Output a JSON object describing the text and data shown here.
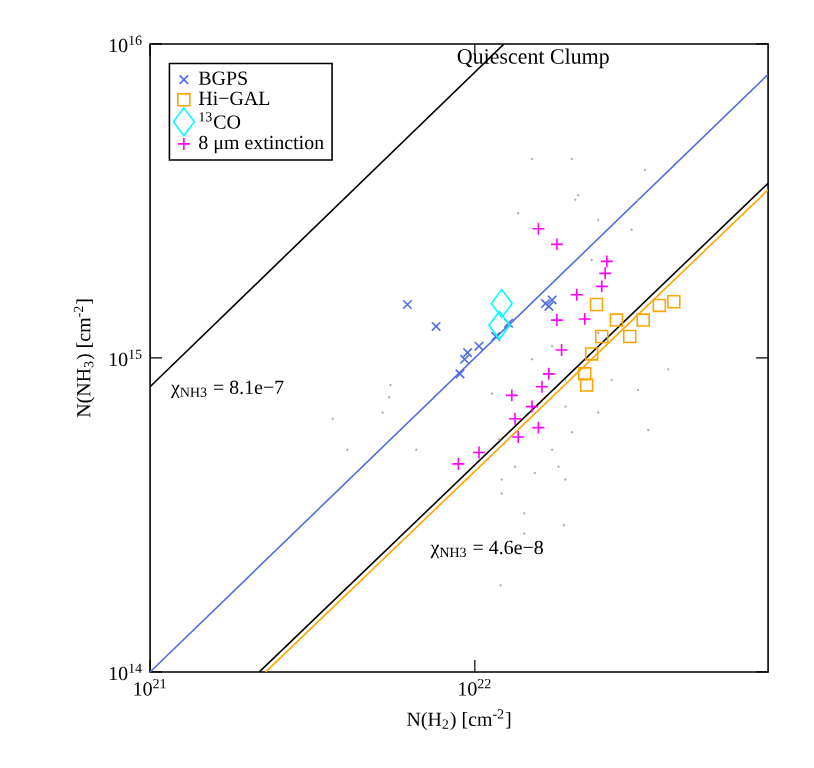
{
  "chart_data": {
    "type": "scatter",
    "title": "Quiescent Clump",
    "xlabel": "N(H$_{2}$) [cm$^{-2}$]",
    "ylabel": "N(NH$_{3}$) [cm$^{-2}$]",
    "log": "xy",
    "xlim": [
      1e+21,
      8e+22
    ],
    "ylim": [
      100000000000000.0,
      1e+16
    ],
    "xticks": [
      {
        "value": 1e+21,
        "label": "10$^{21}$"
      },
      {
        "value": 1e+22,
        "label": "10$^{22}$"
      }
    ],
    "yticks": [
      {
        "value": 100000000000000.0,
        "label": "10$^{14}$"
      },
      {
        "value": 1000000000000000.0,
        "label": "10$^{15}$"
      },
      {
        "value": 1e+16,
        "label": "10$^{16}$"
      }
    ],
    "grid": false,
    "legend": "top left",
    "annotations": [
      "χ$_{NH3}$ = 8.1e−7",
      "χ$_{NH3}$ = 4.6e−8"
    ],
    "series": [
      {
        "color": "#aaaaaa",
        "marker": "circle",
        "x": [
          1.21e+22,
          1.21e+22,
          1.42e+22,
          1.42e+22,
          1.88e+22,
          1.2e+22,
          1.73e+22,
          1.9e+22,
          1.53e+22,
          1.81e+22,
          1.33e+22,
          1.5e+22,
          1.99e+22,
          2.08e+22,
          3.34e+22,
          3.18e+22,
          1.36e+22,
          2.4e+22,
          3.04e+22,
          5.45e+21,
          5.2e+21,
          3.65e+21,
          6.6e+21,
          1.13e+22,
          1.19e+22,
          1.9e+22,
          1.99e+22,
          2.04e+22,
          2.29e+22,
          2.4e+22,
          2.64e+22,
          1.73e+22,
          1.5e+22,
          1.9e+22,
          2.4e+22,
          5.5e+21,
          4.05e+21,
          3.18e+22,
          3.94e+22,
          3.42e+22
        ],
        "values": [
          410000000000000.0,
          370000000000000.0,
          320000000000000.0,
          276000000000000.0,
          293000000000000.0,
          189000000000000.0,
          510000000000000.0,
          410000000000000.0,
          430000000000000.0,
          450000000000000.0,
          450000000000000.0,
          4300000000000000.0,
          4300000000000000.0,
          3300000000000000.0,
          3970000000000000.0,
          3190000000000000.0,
          2890000000000000.0,
          2750000000000000.0,
          2560000000000000.0,
          750000000000000.0,
          670000000000000.0,
          640000000000000.0,
          510000000000000.0,
          770000000000000.0,
          550000000000000.0,
          850000000000000.0,
          580000000000000.0,
          3190000000000000.0,
          2050000000000000.0,
          1200000000000000.0,
          850000000000000.0,
          1090000000000000.0,
          990000000000000.0,
          700000000000000.0,
          670000000000000.0,
          820000000000000.0,
          510000000000000.0,
          790000000000000.0,
          920000000000000.0,
          590000000000000.0
        ]
      },
      {
        "type": "line",
        "color": "#4f6fe0",
        "marker": "none",
        "x": [
          1e+21,
          8e+22
        ],
        "values": [
          100000000000000.0,
          8000000000000000.0
        ]
      },
      {
        "type": "line",
        "color": "#000000",
        "marker": "none",
        "x": [
          1e+21,
          1.23e+22
        ],
        "values": [
          810000000000000.0,
          1e+16
        ]
      },
      {
        "type": "line",
        "color": "#ffa500",
        "marker": "none",
        "x": [
          2.27e+21,
          8e+22
        ],
        "values": [
          100000000000000.0,
          3430000000000000.0
        ]
      },
      {
        "type": "line",
        "color": "#000000",
        "marker": "none",
        "x": [
          2.17e+21,
          8e+22
        ],
        "values": [
          100000000000000.0,
          3600000000000000.0
        ]
      },
      {
        "name": "BGPS",
        "color": "#4f6fe0",
        "marker": "cross",
        "x": [
          6.2e+21,
          7.6e+21,
          9.3e+21,
          9e+21,
          9.5e+21,
          1.03e+22,
          1.16e+22,
          1.27e+22,
          1.65e+22,
          1.73e+22,
          1.69e+22
        ],
        "values": [
          1480000000000000.0,
          1260000000000000.0,
          990000000000000.0,
          890000000000000.0,
          1040000000000000.0,
          1090000000000000.0,
          1170000000000000.0,
          1290000000000000.0,
          1490000000000000.0,
          1530000000000000.0,
          1460000000000000.0
        ]
      },
      {
        "name": "Hi−GAL",
        "color": "#ffa500",
        "marker": "square",
        "x": [
          2.37e+22,
          2.46e+22,
          2.29e+22,
          2.18e+22,
          2.21e+22,
          3e+22,
          3.3e+22,
          3.7e+22,
          4.1e+22,
          2.73e+22
        ],
        "values": [
          1480000000000000.0,
          1170000000000000.0,
          1030000000000000.0,
          890000000000000.0,
          820000000000000.0,
          1170000000000000.0,
          1320000000000000.0,
          1470000000000000.0,
          1510000000000000.0,
          1320000000000000.0
        ]
      },
      {
        "name": "$^{13}$CO",
        "color": "#00ffff",
        "marker": "diamond",
        "x": [
          1.21e+22,
          1.19e+22
        ],
        "values": [
          1490000000000000.0,
          1270000000000000.0
        ]
      },
      {
        "name": "8 μm extinction",
        "color": "#ff00ff",
        "marker": "plus",
        "x": [
          1.57e+22,
          1.79e+22,
          2.55e+22,
          2.52e+22,
          2.46e+22,
          2.06e+22,
          2.18e+22,
          1.79e+22,
          1.85e+22,
          1.69e+22,
          1.61e+22,
          1.3e+22,
          1.5e+22,
          1.33e+22,
          1.57e+22,
          1.36e+22,
          8.9e+21,
          1.03e+22
        ],
        "values": [
          2580000000000000.0,
          2300000000000000.0,
          2030000000000000.0,
          1860000000000000.0,
          1690000000000000.0,
          1590000000000000.0,
          1330000000000000.0,
          1320000000000000.0,
          1060000000000000.0,
          890000000000000.0,
          810000000000000.0,
          760000000000000.0,
          700000000000000.0,
          640000000000000.0,
          600000000000000.0,
          560000000000000.0,
          460000000000000.0,
          500000000000000.0
        ]
      }
    ]
  }
}
